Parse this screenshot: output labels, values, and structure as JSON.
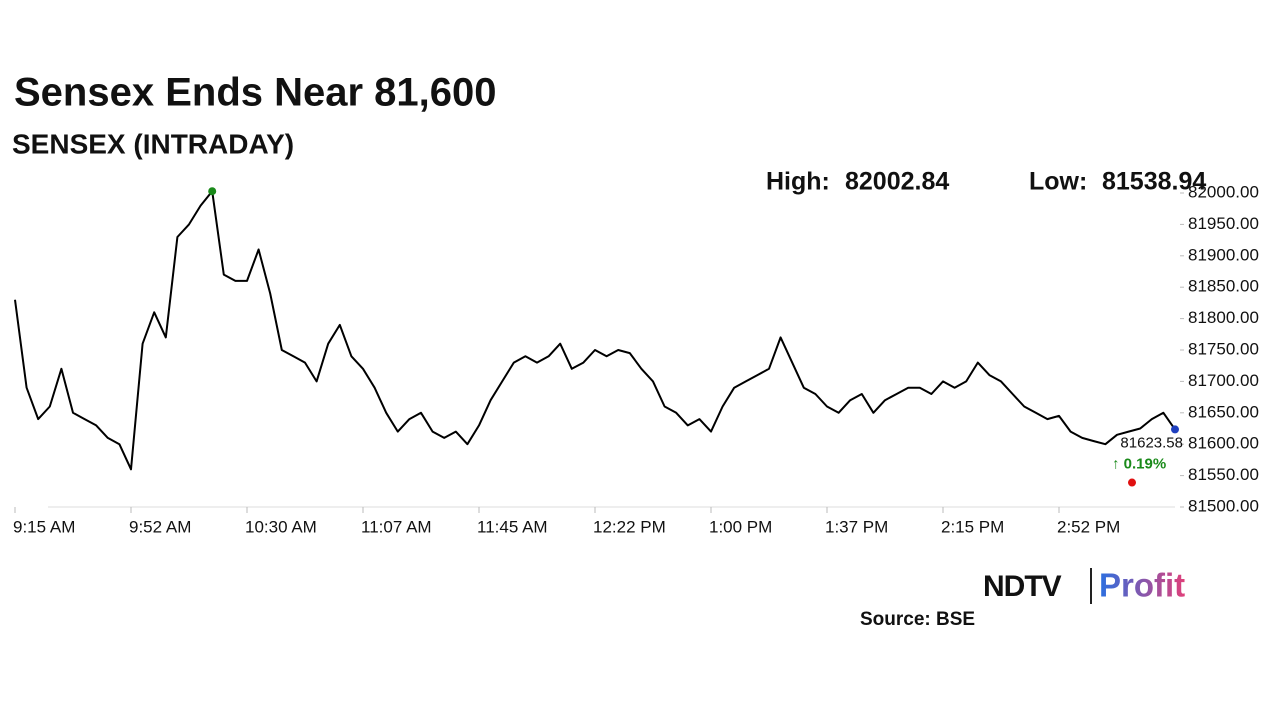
{
  "chart_data": {
    "type": "line",
    "title": "Sensex Ends Near 81,600",
    "subtitle": "SENSEX (INTRADAY)",
    "high_label": "High:",
    "high": 82002.84,
    "low_label": "Low:",
    "low": 81538.94,
    "change": "↑ 0.19%",
    "source": "Source: BSE",
    "brand": [
      "NDTV",
      "Profit"
    ],
    "color": "#000000",
    "high_color": "#1a8a1a",
    "low_color": "#e01010",
    "last_color": "#1f3fbf",
    "change_color": "#1a8a1a",
    "categories": [
      "9:15 AM",
      null,
      null,
      null,
      null,
      null,
      null,
      null,
      null,
      null,
      "9:52 AM",
      null,
      null,
      null,
      null,
      null,
      null,
      null,
      null,
      null,
      "10:30 AM",
      null,
      null,
      null,
      null,
      null,
      null,
      null,
      null,
      null,
      "11:07 AM",
      null,
      null,
      null,
      null,
      null,
      null,
      null,
      null,
      null,
      "11:45 AM",
      null,
      null,
      null,
      null,
      null,
      null,
      null,
      null,
      null,
      "12:22 PM",
      null,
      null,
      null,
      null,
      null,
      null,
      null,
      null,
      null,
      "1:00 PM",
      null,
      null,
      null,
      null,
      null,
      null,
      null,
      null,
      null,
      "1:37 PM",
      null,
      null,
      null,
      null,
      null,
      null,
      null,
      null,
      null,
      "2:15 PM",
      null,
      null,
      null,
      null,
      null,
      null,
      null,
      null,
      null,
      "2:52 PM",
      null,
      null,
      null,
      null,
      null,
      null,
      null,
      null,
      null,
      null
    ],
    "values": [
      81830,
      81690,
      81640,
      81660,
      81720,
      81650,
      81640,
      81630,
      81610,
      81600,
      81560,
      81760,
      81810,
      81770,
      81930,
      81950,
      81980,
      82002.84,
      81870,
      81860,
      81860,
      81910,
      81840,
      81750,
      81740,
      81730,
      81700,
      81760,
      81790,
      81740,
      81720,
      81690,
      81650,
      81620,
      81640,
      81650,
      81620,
      81610,
      81620,
      81600,
      81630,
      81670,
      81700,
      81730,
      81740,
      81730,
      81740,
      81760,
      81720,
      81730,
      81750,
      81740,
      81750,
      81745,
      81720,
      81700,
      81660,
      81650,
      81630,
      81640,
      81620,
      81660,
      81690,
      81700,
      81710,
      81720,
      81770,
      81730,
      81690,
      81680,
      81660,
      81650,
      81670,
      81680,
      81650,
      81670,
      81680,
      81690,
      81690,
      81680,
      81700,
      81690,
      81700,
      81730,
      81710,
      81700,
      81680,
      81660,
      81650,
      81640,
      81645,
      81620,
      81610,
      81605,
      81600,
      81615,
      81620,
      81625,
      81640,
      81650,
      81623.58
    ],
    "ylim": [
      81500,
      82000
    ],
    "yticks": [
      {
        "value": 81500,
        "label": "81500.00"
      },
      {
        "value": 81550,
        "label": "81550.00"
      },
      {
        "value": 81600,
        "label": "81600.00"
      },
      {
        "value": 81650,
        "label": "81650.00"
      },
      {
        "value": 81700,
        "label": "81700.00"
      },
      {
        "value": 81750,
        "label": "81750.00"
      },
      {
        "value": 81800,
        "label": "81800.00"
      },
      {
        "value": 81850,
        "label": "81850.00"
      },
      {
        "value": 81900,
        "label": "81900.00"
      },
      {
        "value": 81950,
        "label": "81950.00"
      },
      {
        "value": 82000,
        "label": "82000.00"
      }
    ]
  }
}
